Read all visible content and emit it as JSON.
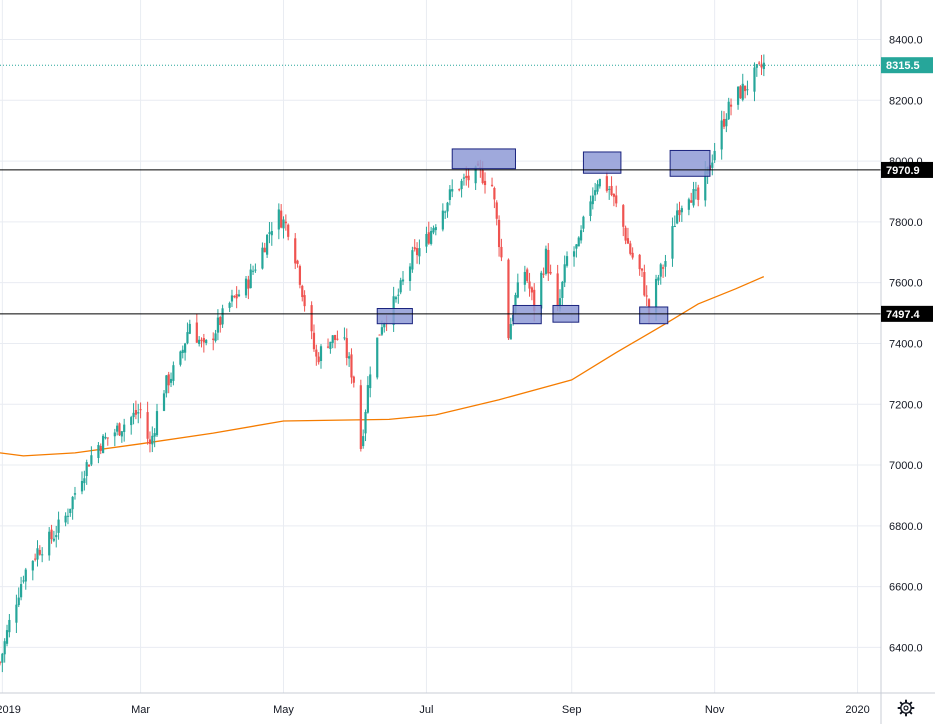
{
  "chart_data": {
    "type": "candlestick",
    "title": "",
    "xlabel": "",
    "ylabel": "",
    "ylim": [
      6250,
      8530
    ],
    "grid": true,
    "colors": {
      "up": "#26a69a",
      "down": "#ef5350",
      "moving_average": "#f57c00",
      "level_line": "#000000",
      "zone_fill": "#8e9ad6",
      "zone_stroke": "#1a237e",
      "last_price": "#26a69a",
      "grid": "#e9ecf2"
    },
    "y_ticks": [
      6400,
      6600,
      6800,
      7000,
      7200,
      7400,
      7600,
      7800,
      8000,
      8200,
      8400
    ],
    "y_tick_labels": [
      "6400.0",
      "6600.0",
      "6800.0",
      "7000.0",
      "7200.0",
      "7400.0",
      "7600.0",
      "7800.0",
      "8000.0",
      "8200.0",
      "8400.0"
    ],
    "x_ticks": [
      {
        "label": "2019",
        "date": "2019-01-01"
      },
      {
        "label": "Mar",
        "date": "2019-03-01"
      },
      {
        "label": "May",
        "date": "2019-05-01"
      },
      {
        "label": "Jul",
        "date": "2019-07-01"
      },
      {
        "label": "Sep",
        "date": "2019-09-01"
      },
      {
        "label": "Nov",
        "date": "2019-11-01"
      },
      {
        "label": "2020",
        "date": "2020-01-01"
      }
    ],
    "x_range": [
      "2018-12-31",
      "2020-01-11"
    ],
    "price_path": [
      [
        "2018-12-31",
        6350
      ],
      [
        "2019-01-04",
        6480
      ],
      [
        "2019-01-10",
        6640
      ],
      [
        "2019-01-16",
        6720
      ],
      [
        "2019-01-22",
        6760
      ],
      [
        "2019-01-28",
        6830
      ],
      [
        "2019-02-04",
        6970
      ],
      [
        "2019-02-10",
        7060
      ],
      [
        "2019-02-18",
        7110
      ],
      [
        "2019-02-24",
        7150
      ],
      [
        "2019-03-01",
        7180
      ],
      [
        "2019-03-05",
        7060
      ],
      [
        "2019-03-10",
        7240
      ],
      [
        "2019-03-18",
        7350
      ],
      [
        "2019-03-22",
        7470
      ],
      [
        "2019-03-28",
        7380
      ],
      [
        "2019-04-03",
        7460
      ],
      [
        "2019-04-08",
        7530
      ],
      [
        "2019-04-15",
        7590
      ],
      [
        "2019-04-22",
        7710
      ],
      [
        "2019-04-28",
        7830
      ],
      [
        "2019-05-03",
        7780
      ],
      [
        "2019-05-07",
        7660
      ],
      [
        "2019-05-12",
        7450
      ],
      [
        "2019-05-15",
        7350
      ],
      [
        "2019-05-20",
        7410
      ],
      [
        "2019-05-26",
        7420
      ],
      [
        "2019-05-31",
        7280
      ],
      [
        "2019-06-03",
        7060
      ],
      [
        "2019-06-07",
        7320
      ],
      [
        "2019-06-12",
        7470
      ],
      [
        "2019-06-18",
        7540
      ],
      [
        "2019-06-25",
        7680
      ],
      [
        "2019-07-01",
        7740
      ],
      [
        "2019-07-06",
        7820
      ],
      [
        "2019-07-12",
        7900
      ],
      [
        "2019-07-18",
        7940
      ],
      [
        "2019-07-24",
        7960
      ],
      [
        "2019-07-29",
        7920
      ],
      [
        "2019-08-02",
        7680
      ],
      [
        "2019-08-05",
        7430
      ],
      [
        "2019-08-08",
        7550
      ],
      [
        "2019-08-12",
        7640
      ],
      [
        "2019-08-16",
        7520
      ],
      [
        "2019-08-21",
        7690
      ],
      [
        "2019-08-26",
        7500
      ],
      [
        "2019-08-30",
        7680
      ],
      [
        "2019-09-04",
        7720
      ],
      [
        "2019-09-08",
        7860
      ],
      [
        "2019-09-12",
        7940
      ],
      [
        "2019-09-17",
        7910
      ],
      [
        "2019-09-22",
        7810
      ],
      [
        "2019-09-26",
        7700
      ],
      [
        "2019-10-01",
        7620
      ],
      [
        "2019-10-04",
        7500
      ],
      [
        "2019-10-08",
        7620
      ],
      [
        "2019-10-12",
        7690
      ],
      [
        "2019-10-16",
        7840
      ],
      [
        "2019-10-21",
        7900
      ],
      [
        "2019-10-25",
        7870
      ],
      [
        "2019-10-29",
        7960
      ],
      [
        "2019-11-02",
        8070
      ],
      [
        "2019-11-06",
        8160
      ],
      [
        "2019-11-11",
        8220
      ],
      [
        "2019-11-15",
        8250
      ],
      [
        "2019-11-19",
        8290
      ],
      [
        "2019-11-22",
        8316
      ]
    ],
    "moving_average": [
      [
        "2018-12-31",
        7040
      ],
      [
        "2019-01-10",
        7030
      ],
      [
        "2019-02-01",
        7040
      ],
      [
        "2019-03-01",
        7070
      ],
      [
        "2019-04-01",
        7105
      ],
      [
        "2019-05-01",
        7145
      ],
      [
        "2019-05-25",
        7148
      ],
      [
        "2019-06-15",
        7150
      ],
      [
        "2019-07-05",
        7165
      ],
      [
        "2019-08-01",
        7215
      ],
      [
        "2019-09-01",
        7280
      ],
      [
        "2019-09-20",
        7370
      ],
      [
        "2019-10-10",
        7460
      ],
      [
        "2019-10-25",
        7530
      ],
      [
        "2019-11-10",
        7580
      ],
      [
        "2019-11-22",
        7620
      ]
    ],
    "horizontal_levels": [
      {
        "value": 7970.9,
        "label": "7970.9"
      },
      {
        "value": 7497.4,
        "label": "7497.4"
      }
    ],
    "last_price": {
      "value": 8315.5,
      "label": "8315.5"
    },
    "zones": [
      {
        "start": "2019-06-10",
        "end": "2019-06-25",
        "low": 7465,
        "high": 7515
      },
      {
        "start": "2019-07-12",
        "end": "2019-08-08",
        "low": 7975,
        "high": 8040
      },
      {
        "start": "2019-08-07",
        "end": "2019-08-19",
        "low": 7465,
        "high": 7525
      },
      {
        "start": "2019-08-24",
        "end": "2019-09-04",
        "low": 7470,
        "high": 7525
      },
      {
        "start": "2019-09-06",
        "end": "2019-09-22",
        "low": 7960,
        "high": 8030
      },
      {
        "start": "2019-09-30",
        "end": "2019-10-12",
        "low": 7465,
        "high": 7520
      },
      {
        "start": "2019-10-13",
        "end": "2019-10-30",
        "low": 7950,
        "high": 8035
      }
    ],
    "settings_icon": "gear-icon"
  }
}
